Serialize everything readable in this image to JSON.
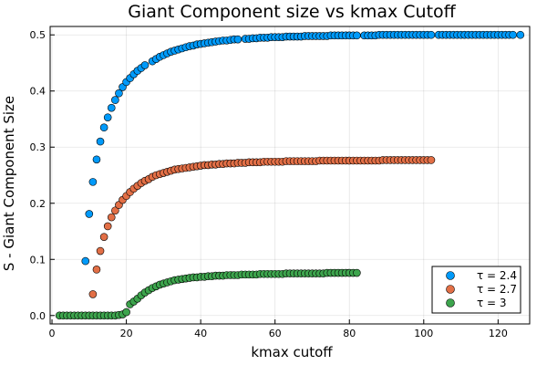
{
  "chart_data": {
    "type": "scatter",
    "title": "Giant Component size vs kmax Cutoff",
    "xlabel": "kmax cutoff",
    "ylabel": "S - Giant Component Size",
    "xlim": [
      -0.5,
      128.5
    ],
    "ylim": [
      -0.015,
      0.515
    ],
    "xticks": [
      0,
      20,
      40,
      60,
      80,
      100,
      120
    ],
    "yticks": [
      0.0,
      0.1,
      0.2,
      0.3,
      0.4,
      0.5
    ],
    "ytick_labels": [
      "0.0",
      "0.1",
      "0.2",
      "0.3",
      "0.4",
      "0.5"
    ],
    "grid": true,
    "legend_position": "bottom-right",
    "series": [
      {
        "name": "τ = 2.4",
        "color": "#009AFA",
        "x": [
          9,
          10,
          11,
          12,
          13,
          14,
          15,
          16,
          17,
          18,
          19,
          20,
          21,
          22,
          23,
          24,
          25,
          27,
          28,
          29,
          30,
          31,
          32,
          33,
          34,
          35,
          36,
          37,
          38,
          39,
          40,
          41,
          42,
          43,
          44,
          45,
          46,
          47,
          48,
          49,
          50,
          52,
          53,
          54,
          55,
          56,
          57,
          58,
          59,
          60,
          61,
          62,
          63,
          64,
          65,
          66,
          67,
          68,
          69,
          70,
          71,
          72,
          73,
          74,
          75,
          76,
          77,
          78,
          79,
          80,
          81,
          82,
          84,
          85,
          86,
          87,
          88,
          89,
          90,
          91,
          92,
          93,
          94,
          95,
          96,
          97,
          98,
          99,
          100,
          101,
          102,
          104,
          105,
          106,
          107,
          108,
          109,
          110,
          111,
          112,
          113,
          114,
          115,
          116,
          117,
          118,
          119,
          120,
          121,
          122,
          123,
          124,
          126
        ],
        "y": [
          0.097,
          0.181,
          0.238,
          0.278,
          0.31,
          0.335,
          0.353,
          0.37,
          0.384,
          0.396,
          0.407,
          0.416,
          0.423,
          0.43,
          0.436,
          0.441,
          0.446,
          0.453,
          0.457,
          0.461,
          0.464,
          0.467,
          0.47,
          0.472,
          0.474,
          0.476,
          0.478,
          0.48,
          0.481,
          0.483,
          0.484,
          0.485,
          0.486,
          0.487,
          0.488,
          0.489,
          0.49,
          0.49,
          0.491,
          0.492,
          0.492,
          0.493,
          0.493,
          0.494,
          0.494,
          0.495,
          0.495,
          0.495,
          0.496,
          0.496,
          0.496,
          0.496,
          0.497,
          0.497,
          0.497,
          0.497,
          0.497,
          0.498,
          0.498,
          0.498,
          0.498,
          0.498,
          0.498,
          0.498,
          0.499,
          0.499,
          0.499,
          0.499,
          0.499,
          0.499,
          0.499,
          0.499,
          0.499,
          0.499,
          0.499,
          0.499,
          0.5,
          0.5,
          0.5,
          0.5,
          0.5,
          0.5,
          0.5,
          0.5,
          0.5,
          0.5,
          0.5,
          0.5,
          0.5,
          0.5,
          0.5,
          0.5,
          0.5,
          0.5,
          0.5,
          0.5,
          0.5,
          0.5,
          0.5,
          0.5,
          0.5,
          0.5,
          0.5,
          0.5,
          0.5,
          0.5,
          0.5,
          0.5,
          0.5,
          0.5,
          0.5,
          0.5,
          0.5
        ]
      },
      {
        "name": "τ = 2.7",
        "color": "#E26F46",
        "x": [
          11,
          12,
          13,
          14,
          15,
          16,
          17,
          18,
          19,
          20,
          21,
          22,
          23,
          24,
          25,
          26,
          27,
          28,
          29,
          30,
          31,
          32,
          33,
          34,
          35,
          36,
          37,
          38,
          39,
          40,
          41,
          42,
          43,
          44,
          45,
          46,
          47,
          48,
          49,
          50,
          51,
          52,
          53,
          54,
          55,
          56,
          57,
          58,
          59,
          60,
          61,
          62,
          63,
          64,
          65,
          66,
          67,
          68,
          69,
          70,
          71,
          72,
          73,
          74,
          75,
          76,
          77,
          78,
          79,
          80,
          81,
          82,
          83,
          84,
          85,
          86,
          87,
          88,
          89,
          90,
          91,
          92,
          93,
          94,
          95,
          96,
          97,
          98,
          99,
          100,
          101,
          102
        ],
        "y": [
          0.038,
          0.082,
          0.115,
          0.14,
          0.159,
          0.175,
          0.187,
          0.197,
          0.206,
          0.213,
          0.22,
          0.226,
          0.231,
          0.236,
          0.24,
          0.243,
          0.247,
          0.25,
          0.252,
          0.254,
          0.256,
          0.258,
          0.26,
          0.261,
          0.262,
          0.263,
          0.264,
          0.265,
          0.266,
          0.267,
          0.268,
          0.268,
          0.269,
          0.269,
          0.27,
          0.27,
          0.271,
          0.271,
          0.271,
          0.272,
          0.272,
          0.272,
          0.273,
          0.273,
          0.273,
          0.273,
          0.274,
          0.274,
          0.274,
          0.274,
          0.274,
          0.274,
          0.275,
          0.275,
          0.275,
          0.275,
          0.275,
          0.275,
          0.275,
          0.275,
          0.275,
          0.276,
          0.276,
          0.276,
          0.276,
          0.276,
          0.276,
          0.276,
          0.276,
          0.276,
          0.276,
          0.276,
          0.276,
          0.276,
          0.276,
          0.276,
          0.276,
          0.276,
          0.277,
          0.277,
          0.277,
          0.277,
          0.277,
          0.277,
          0.277,
          0.277,
          0.277,
          0.277,
          0.277,
          0.277,
          0.277,
          0.277
        ]
      },
      {
        "name": "τ = 3",
        "color": "#3DA44D",
        "x": [
          2,
          3,
          4,
          5,
          6,
          7,
          8,
          9,
          10,
          11,
          12,
          13,
          14,
          15,
          16,
          17,
          18,
          19,
          20,
          21,
          22,
          23,
          24,
          25,
          26,
          27,
          28,
          29,
          30,
          31,
          32,
          33,
          34,
          35,
          36,
          37,
          38,
          39,
          40,
          41,
          42,
          43,
          44,
          45,
          46,
          47,
          48,
          49,
          50,
          51,
          52,
          53,
          54,
          55,
          56,
          57,
          58,
          59,
          60,
          61,
          62,
          63,
          64,
          65,
          66,
          67,
          68,
          69,
          70,
          71,
          72,
          73,
          74,
          75,
          76,
          77,
          78,
          79,
          80,
          81,
          82
        ],
        "y": [
          0.0,
          0.0,
          0.0,
          0.0,
          0.0,
          0.0,
          0.0,
          0.0,
          0.0,
          0.0,
          0.0,
          0.0,
          0.0,
          0.0,
          0.0,
          0.0,
          0.001,
          0.002,
          0.006,
          0.02,
          0.025,
          0.03,
          0.036,
          0.041,
          0.045,
          0.049,
          0.052,
          0.055,
          0.057,
          0.059,
          0.061,
          0.063,
          0.064,
          0.065,
          0.066,
          0.067,
          0.068,
          0.068,
          0.069,
          0.069,
          0.07,
          0.07,
          0.071,
          0.071,
          0.071,
          0.072,
          0.072,
          0.072,
          0.072,
          0.073,
          0.073,
          0.073,
          0.073,
          0.073,
          0.074,
          0.074,
          0.074,
          0.074,
          0.074,
          0.074,
          0.074,
          0.075,
          0.075,
          0.075,
          0.075,
          0.075,
          0.075,
          0.075,
          0.075,
          0.075,
          0.075,
          0.075,
          0.076,
          0.076,
          0.076,
          0.076,
          0.076,
          0.076,
          0.076,
          0.076,
          0.076
        ]
      }
    ]
  }
}
